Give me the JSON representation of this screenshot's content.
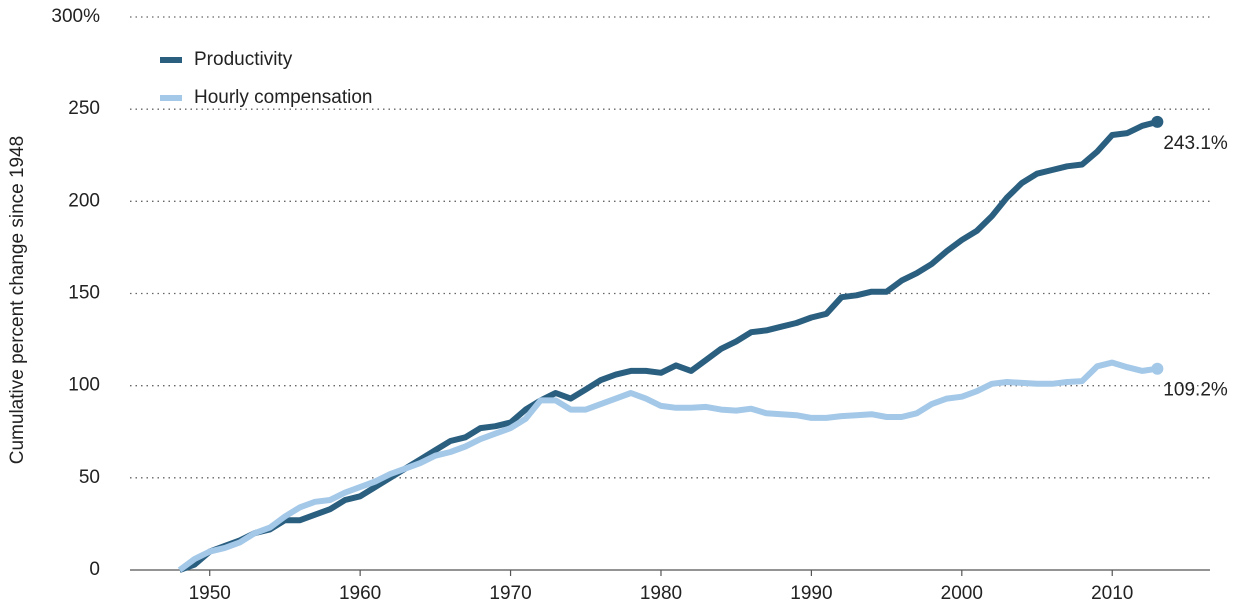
{
  "chart_data": {
    "type": "line",
    "y_label": "Cumulative percent change since 1948",
    "x": [
      1948,
      1949,
      1950,
      1951,
      1952,
      1953,
      1954,
      1955,
      1956,
      1957,
      1958,
      1959,
      1960,
      1961,
      1962,
      1963,
      1964,
      1965,
      1966,
      1967,
      1968,
      1969,
      1970,
      1971,
      1972,
      1973,
      1974,
      1975,
      1976,
      1977,
      1978,
      1979,
      1980,
      1981,
      1982,
      1983,
      1984,
      1985,
      1986,
      1987,
      1988,
      1989,
      1990,
      1991,
      1992,
      1993,
      1994,
      1995,
      1996,
      1997,
      1998,
      1999,
      2000,
      2001,
      2002,
      2003,
      2004,
      2005,
      2006,
      2007,
      2008,
      2009,
      2010,
      2011,
      2012,
      2013
    ],
    "series": [
      {
        "name": "Productivity",
        "color": "#2b5f80",
        "end_label": "243.1%",
        "values": [
          0,
          3,
          10,
          13,
          16,
          20,
          22,
          27,
          27,
          30,
          33,
          38,
          40,
          45,
          50,
          55,
          60,
          65,
          70,
          72,
          77,
          78,
          80,
          87,
          92,
          96,
          93,
          98,
          103,
          106,
          108,
          108,
          107,
          111,
          108,
          114,
          120,
          124,
          129,
          130,
          132,
          134,
          137,
          139,
          148,
          149,
          151,
          151,
          157,
          161,
          166,
          173,
          179,
          184,
          192,
          202,
          210,
          215,
          217,
          219,
          220,
          227,
          236,
          237,
          241,
          243.1
        ]
      },
      {
        "name": "Hourly compensation",
        "color": "#a4c8e8",
        "end_label": "109.2%",
        "values": [
          0,
          6,
          10,
          12,
          15,
          20,
          23,
          29,
          34,
          37,
          38,
          42,
          45,
          48,
          52,
          55,
          58,
          62,
          64,
          67,
          71,
          74,
          77,
          82,
          92,
          92,
          87,
          87,
          90,
          93,
          96,
          93,
          89,
          88,
          88,
          88.5,
          87,
          86.5,
          87.5,
          85,
          84.5,
          84,
          82.5,
          82.5,
          83.5,
          84,
          84.5,
          83,
          83,
          85,
          90,
          93,
          94,
          97,
          101,
          102,
          101.5,
          101,
          101,
          102,
          102.5,
          110.5,
          112.5,
          110,
          108,
          109.2
        ]
      }
    ],
    "xlim": [
      1944.7,
      2016.5
    ],
    "xticks": [
      1950,
      1960,
      1970,
      1980,
      1990,
      2000,
      2010
    ],
    "ylim": [
      0,
      300
    ],
    "yticks": [
      0,
      50,
      100,
      150,
      200,
      250,
      {
        "value": 300,
        "label": "300%"
      }
    ],
    "grid": true,
    "legend": "top-left"
  }
}
